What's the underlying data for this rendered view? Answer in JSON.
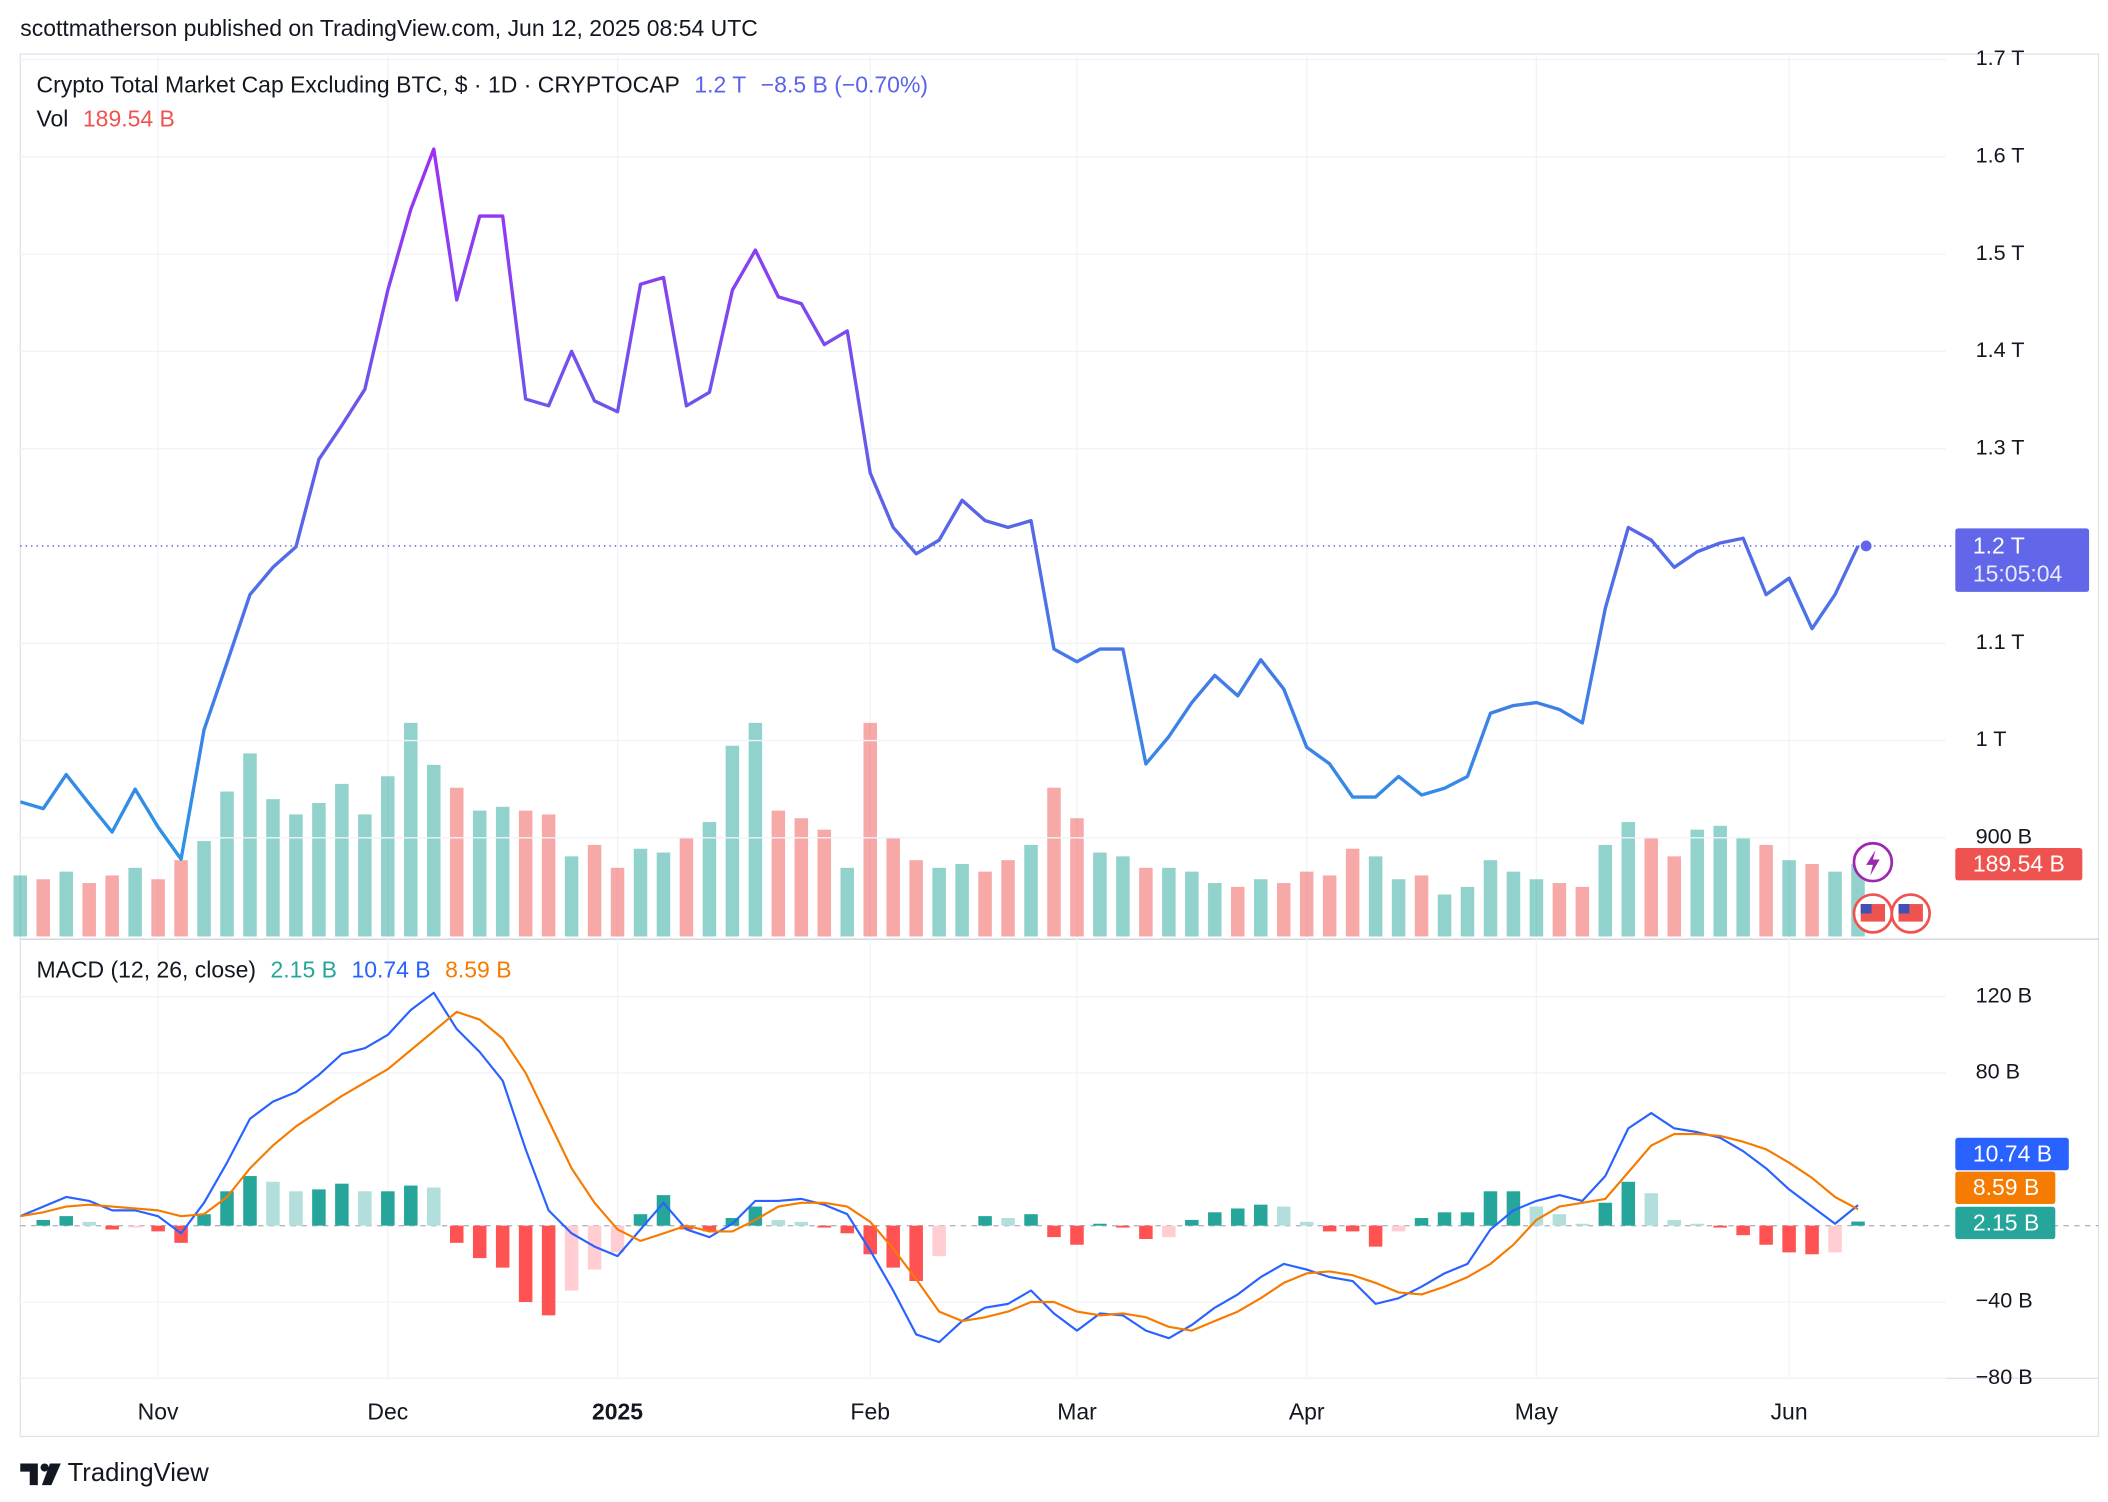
{
  "header": "scottmatherson published on TradingView.com, Jun 12, 2025 08:54 UTC",
  "footer": "TradingView",
  "chart_data": [
    {
      "type": "line",
      "categories": [
        null,
        null,
        null,
        null,
        null,
        null,
        "Nov",
        null,
        null,
        null,
        null,
        null,
        null,
        null,
        null,
        null,
        "Dec",
        null,
        null,
        null,
        null,
        null,
        null,
        null,
        null,
        null,
        "2025",
        null,
        null,
        null,
        null,
        null,
        null,
        null,
        null,
        null,
        null,
        "Feb",
        null,
        null,
        null,
        null,
        null,
        null,
        null,
        null,
        "Mar",
        null,
        null,
        null,
        null,
        null,
        null,
        null,
        null,
        null,
        "Apr",
        null,
        null,
        null,
        null,
        null,
        null,
        null,
        null,
        null,
        "May",
        null,
        null,
        null,
        null,
        null,
        null,
        null,
        null,
        null,
        null,
        "Jun",
        null,
        null,
        null
      ],
      "series": [
        {
          "name": "Crypto Total Market Cap Excluding BTC, $ · 1D · CRYPTOCAP",
          "color": [
            "#a22cf5",
            "#5b63e8",
            "#2a95e6"
          ],
          "values": [
            0.937,
            0.93,
            0.965,
            0.935,
            0.906,
            0.95,
            0.911,
            0.878,
            1.011,
            1.08,
            1.15,
            1.178,
            1.199,
            1.289,
            1.324,
            1.361,
            1.463,
            1.546,
            1.608,
            1.453,
            1.539,
            1.539,
            1.351,
            1.344,
            1.4,
            1.349,
            1.338,
            1.469,
            1.476,
            1.344,
            1.358,
            1.463,
            1.504,
            1.456,
            1.449,
            1.407,
            1.421,
            1.275,
            1.219,
            1.192,
            1.206,
            1.247,
            1.226,
            1.219,
            1.226,
            1.094,
            1.081,
            1.094,
            1.094,
            0.976,
            1.004,
            1.039,
            1.067,
            1.046,
            1.083,
            1.053,
            0.993,
            0.976,
            0.942,
            0.942,
            0.963,
            0.944,
            0.951,
            0.963,
            1.028,
            1.036,
            1.039,
            1.032,
            1.018,
            1.136,
            1.219,
            1.206,
            1.178,
            1.194,
            1.203,
            1.208,
            1.15,
            1.167,
            1.115,
            1.15,
            1.2
          ],
          "last_label": "1.2 T",
          "change_label": "−8.5 B (−0.70%)"
        }
      ],
      "countdown": "15:05:04",
      "badge_color": "#6167e8",
      "ylim": [
        0.7986,
        1.7056
      ],
      "yticks": [
        {
          "value": 0.9,
          "label": "900 B"
        },
        {
          "value": 1.0,
          "label": "1 T"
        },
        {
          "value": 1.1,
          "label": "1.1 T"
        },
        {
          "value": 1.3,
          "label": "1.3 T"
        },
        {
          "value": 1.4,
          "label": "1.4 T"
        },
        {
          "value": 1.5,
          "label": "1.5 T"
        },
        {
          "value": 1.6,
          "label": "1.6 T"
        },
        {
          "value": 1.7,
          "label": "1.7 T"
        }
      ],
      "grid": true
    },
    {
      "type": "bar",
      "name": "Vol",
      "values": [
        160,
        150,
        170,
        140,
        160,
        180,
        150,
        200,
        250,
        380,
        480,
        360,
        320,
        350,
        400,
        320,
        420,
        560,
        450,
        390,
        330,
        340,
        330,
        320,
        210,
        240,
        180,
        230,
        220,
        260,
        300,
        500,
        560,
        330,
        310,
        280,
        180,
        560,
        260,
        200,
        180,
        190,
        170,
        200,
        240,
        390,
        310,
        220,
        210,
        180,
        180,
        170,
        140,
        130,
        150,
        140,
        170,
        160,
        230,
        210,
        150,
        160,
        110,
        130,
        200,
        170,
        150,
        140,
        130,
        240,
        300,
        260,
        210,
        280,
        290,
        260,
        240,
        200,
        190,
        170,
        189.54
      ],
      "last_label": "189.54 B",
      "up_color": "#26a69a",
      "down_color": "#ef5350",
      "ylim": [
        0,
        620
      ]
    },
    {
      "type": "macd",
      "name": "MACD (12, 26, close)",
      "histogram": {
        "label": "2.15 B",
        "colors": {
          "up_rising": "#26a69a",
          "up_falling": "#b2dfdb",
          "down_falling": "#ff5252",
          "down_rising": "#ffcdd2"
        },
        "values": [
          0,
          3,
          5,
          2,
          -2,
          -1,
          -3,
          -9,
          6,
          18,
          26,
          23,
          18,
          19,
          22,
          18,
          18,
          21,
          20,
          -9,
          -17,
          -22,
          -40,
          -47,
          -34,
          -23,
          -14,
          6,
          16,
          -2,
          -3,
          4,
          10,
          3,
          2,
          -1,
          -4,
          -15,
          -22,
          -29,
          -16,
          0,
          5,
          4,
          6,
          -6,
          -10,
          1,
          -1,
          -7,
          -6,
          3,
          7,
          9,
          11,
          10,
          2,
          -3,
          -3,
          -11,
          -3,
          4,
          7,
          7,
          18,
          18,
          10,
          6,
          1,
          12,
          23,
          17,
          3,
          1,
          -1,
          -5,
          -10,
          -14,
          -15,
          -14,
          2.15
        ]
      },
      "macd": {
        "label": "10.74 B",
        "color": "#2962ff",
        "values": [
          5,
          10,
          15,
          13,
          8,
          8,
          5,
          -4,
          12,
          33,
          56,
          65,
          70,
          79,
          90,
          93,
          100,
          113,
          122,
          103,
          91,
          76,
          40,
          8,
          -4,
          -11,
          -16,
          -2,
          12,
          -2,
          -6,
          1,
          13,
          13,
          14,
          11,
          6,
          -13,
          -34,
          -57,
          -61,
          -50,
          -43,
          -41,
          -34,
          -46,
          -55,
          -46,
          -47,
          -55,
          -59,
          -52,
          -43,
          -36,
          -27,
          -20,
          -23,
          -27,
          -29,
          -41,
          -38,
          -32,
          -25,
          -20,
          -2,
          8,
          13,
          16,
          13,
          26,
          51,
          59,
          51,
          49,
          46,
          39,
          30,
          19,
          10,
          1,
          10.74
        ]
      },
      "signal": {
        "label": "8.59 B",
        "color": "#f57c00",
        "values": [
          5,
          7,
          10,
          11,
          10,
          9,
          8,
          5,
          6,
          15,
          30,
          42,
          52,
          60,
          68,
          75,
          82,
          92,
          102,
          112,
          108,
          98,
          80,
          55,
          30,
          12,
          -2,
          -8,
          -4,
          0,
          -3,
          -3,
          3,
          10,
          12,
          12,
          10,
          2,
          -12,
          -28,
          -45,
          -50,
          -48,
          -45,
          -40,
          -40,
          -45,
          -47,
          -46,
          -48,
          -53,
          -55,
          -50,
          -45,
          -38,
          -30,
          -25,
          -24,
          -26,
          -30,
          -35,
          -36,
          -32,
          -27,
          -20,
          -10,
          3,
          10,
          12,
          14,
          28,
          42,
          48,
          48,
          47,
          44,
          40,
          33,
          25,
          15,
          8.59
        ]
      },
      "ylim": [
        -80,
        148.7
      ],
      "yticks": [
        {
          "value": -80,
          "label": "−80 B"
        },
        {
          "value": -40,
          "label": "−40 B"
        },
        {
          "value": 80,
          "label": "80 B"
        },
        {
          "value": 120,
          "label": "120 B"
        }
      ],
      "grid": true
    }
  ]
}
